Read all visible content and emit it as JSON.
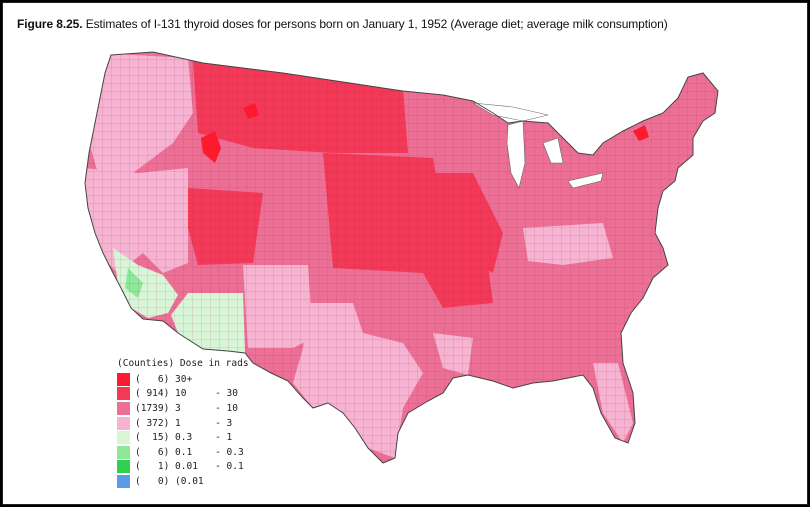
{
  "caption": {
    "figure_label": "Figure 8.25.",
    "text": " Estimates of I-131 thyroid doses for persons born on January 1, 1952  (Average diet; average milk consumption)"
  },
  "legend": {
    "title": "(Counties) Dose in rads",
    "entries": [
      {
        "text": "(   6) 30+",
        "color": "#ff1a2e"
      },
      {
        "text": "( 914) 10     - 30",
        "color": "#f23a58"
      },
      {
        "text": "(1739) 3      - 10",
        "color": "#ec7096"
      },
      {
        "text": "( 372) 1      - 3",
        "color": "#f6b3d2"
      },
      {
        "text": "(  15) 0.3    - 1",
        "color": "#d8f5d8"
      },
      {
        "text": "(   6) 0.1    - 0.3",
        "color": "#8ee89a"
      },
      {
        "text": "(   1) 0.01   - 0.1",
        "color": "#2fd150"
      },
      {
        "text": "(   0) (0.01",
        "color": "#5b9be8"
      }
    ]
  },
  "colors": {
    "dose_30_plus": "#ff1a2e",
    "dose_10_30": "#f23a58",
    "dose_3_10": "#ec7096",
    "dose_1_3": "#f6b3d2",
    "dose_03_1": "#d8f5d8",
    "dose_01_03": "#8ee89a"
  }
}
